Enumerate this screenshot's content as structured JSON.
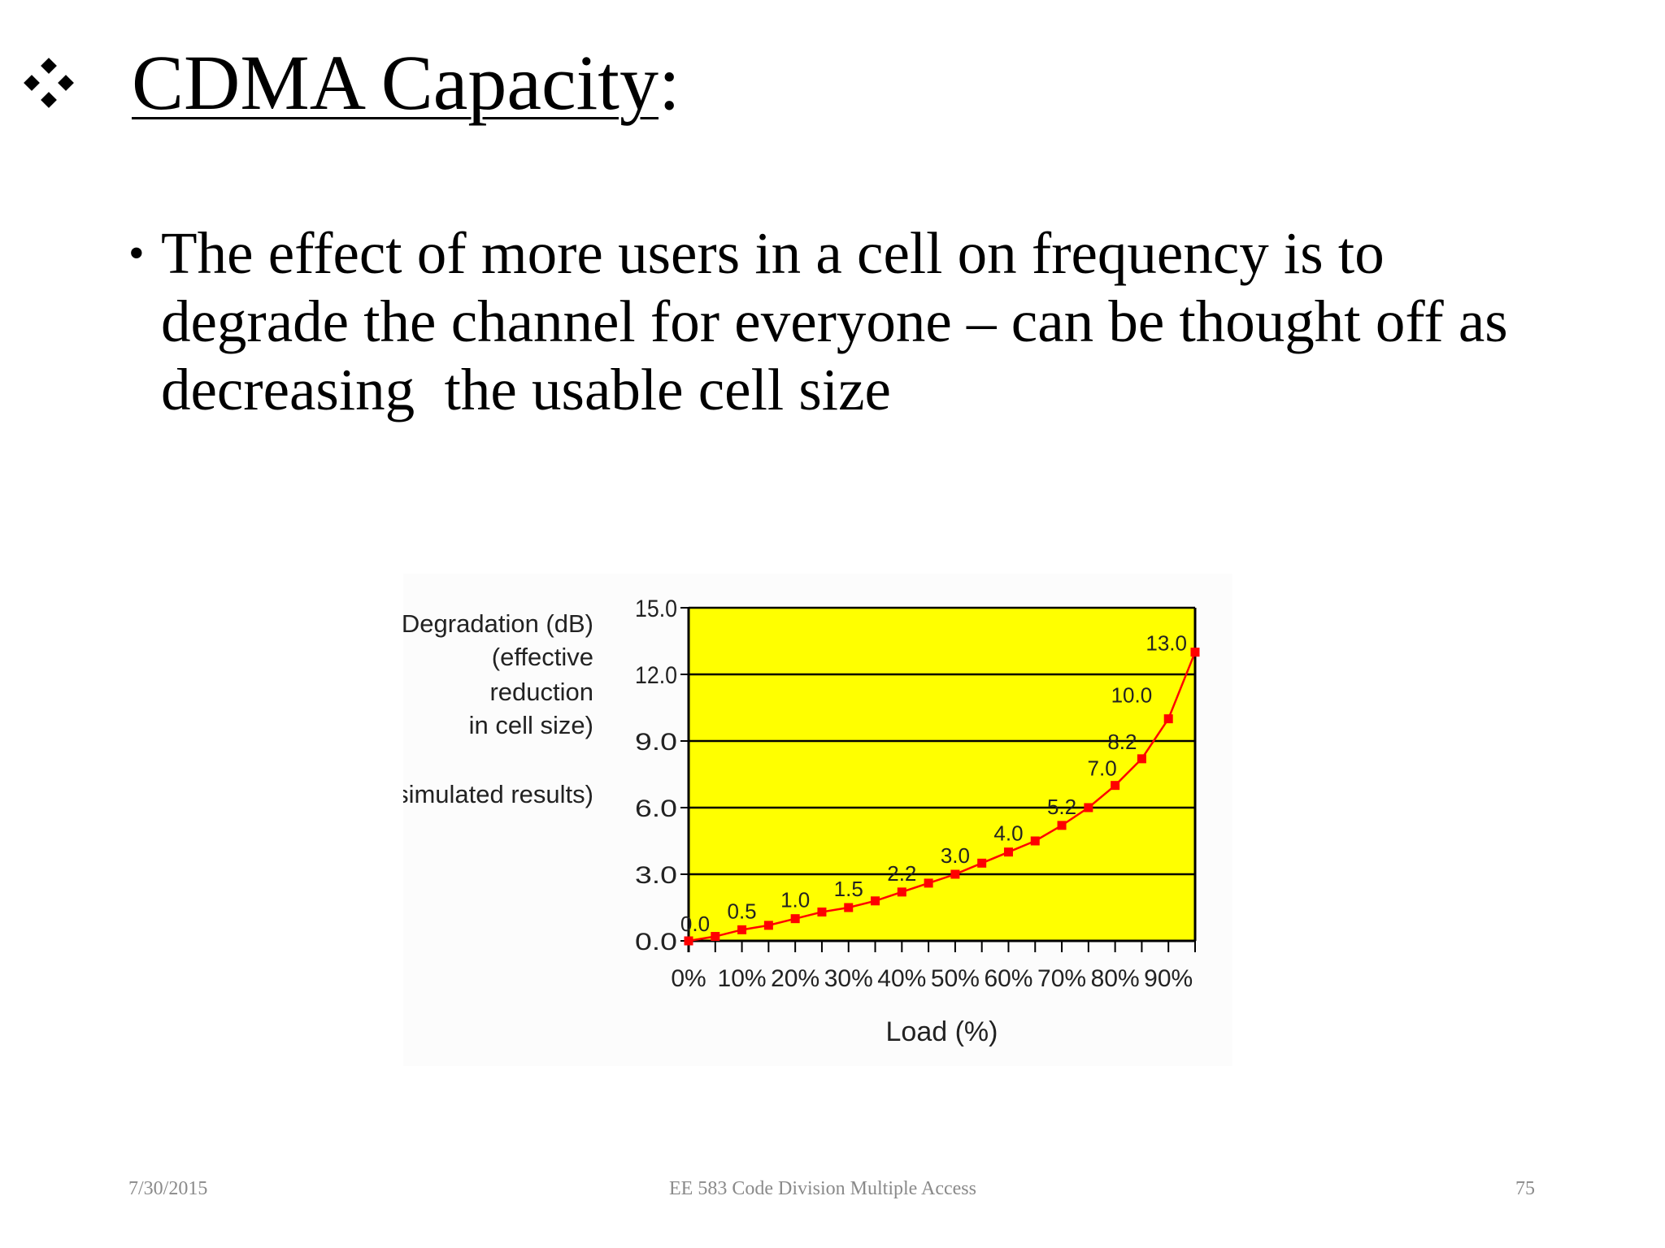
{
  "slide": {
    "title": "CDMA Capacity",
    "title_suffix": ":",
    "bullet": "The effect of more users in a cell on frequency is to degrade the channel for everyone – can be thought off as  decreasing  the usable cell size"
  },
  "footer": {
    "date": "7/30/2015",
    "course": "EE 583 Code Division Multiple Access",
    "page": "75"
  },
  "chart_data": {
    "type": "line",
    "title": "",
    "ylabel_lines": [
      "Degradation (dB)",
      "(effective",
      "reduction",
      "in cell size)"
    ],
    "note": "(simulated results)",
    "xlabel": "Load (%)",
    "ylim": [
      0,
      15
    ],
    "xlim": [
      0,
      95
    ],
    "grid": true,
    "y_ticks": [
      "0.0",
      "3.0",
      "6.0",
      "9.0",
      "12.0",
      "15.0"
    ],
    "x_tick_labels": [
      "0%",
      "10%",
      "20%",
      "30%",
      "40%",
      "50%",
      "60%",
      "70%",
      "80%",
      "90%"
    ],
    "colors": {
      "plot_background": "#ffff00",
      "line": "#ff0000",
      "marker": "#ff0000",
      "axis": "#000000"
    },
    "series": [
      {
        "x": [
          0,
          5,
          10,
          15,
          20,
          25,
          30,
          35,
          40,
          45,
          50,
          55,
          60,
          65,
          70,
          75,
          80,
          85,
          90,
          95
        ],
        "y": [
          0.0,
          0.2,
          0.5,
          0.7,
          1.0,
          1.3,
          1.5,
          1.8,
          2.2,
          2.6,
          3.0,
          3.5,
          4.0,
          4.5,
          5.2,
          6.0,
          7.0,
          8.2,
          10.0,
          13.0
        ]
      }
    ],
    "data_labels": [
      {
        "x": 0,
        "text": "0.0"
      },
      {
        "x": 10,
        "text": "0.5"
      },
      {
        "x": 20,
        "text": "1.0"
      },
      {
        "x": 30,
        "text": "1.5"
      },
      {
        "x": 40,
        "text": "2.2"
      },
      {
        "x": 50,
        "text": "3.0"
      },
      {
        "x": 60,
        "text": "4.0"
      },
      {
        "x": 70,
        "text": "5.2"
      },
      {
        "x": 80,
        "text": "7.0"
      },
      {
        "x": 85,
        "text": "8.2"
      },
      {
        "x": 90,
        "text": "10.0"
      },
      {
        "x": 95,
        "text": "13.0"
      }
    ]
  }
}
